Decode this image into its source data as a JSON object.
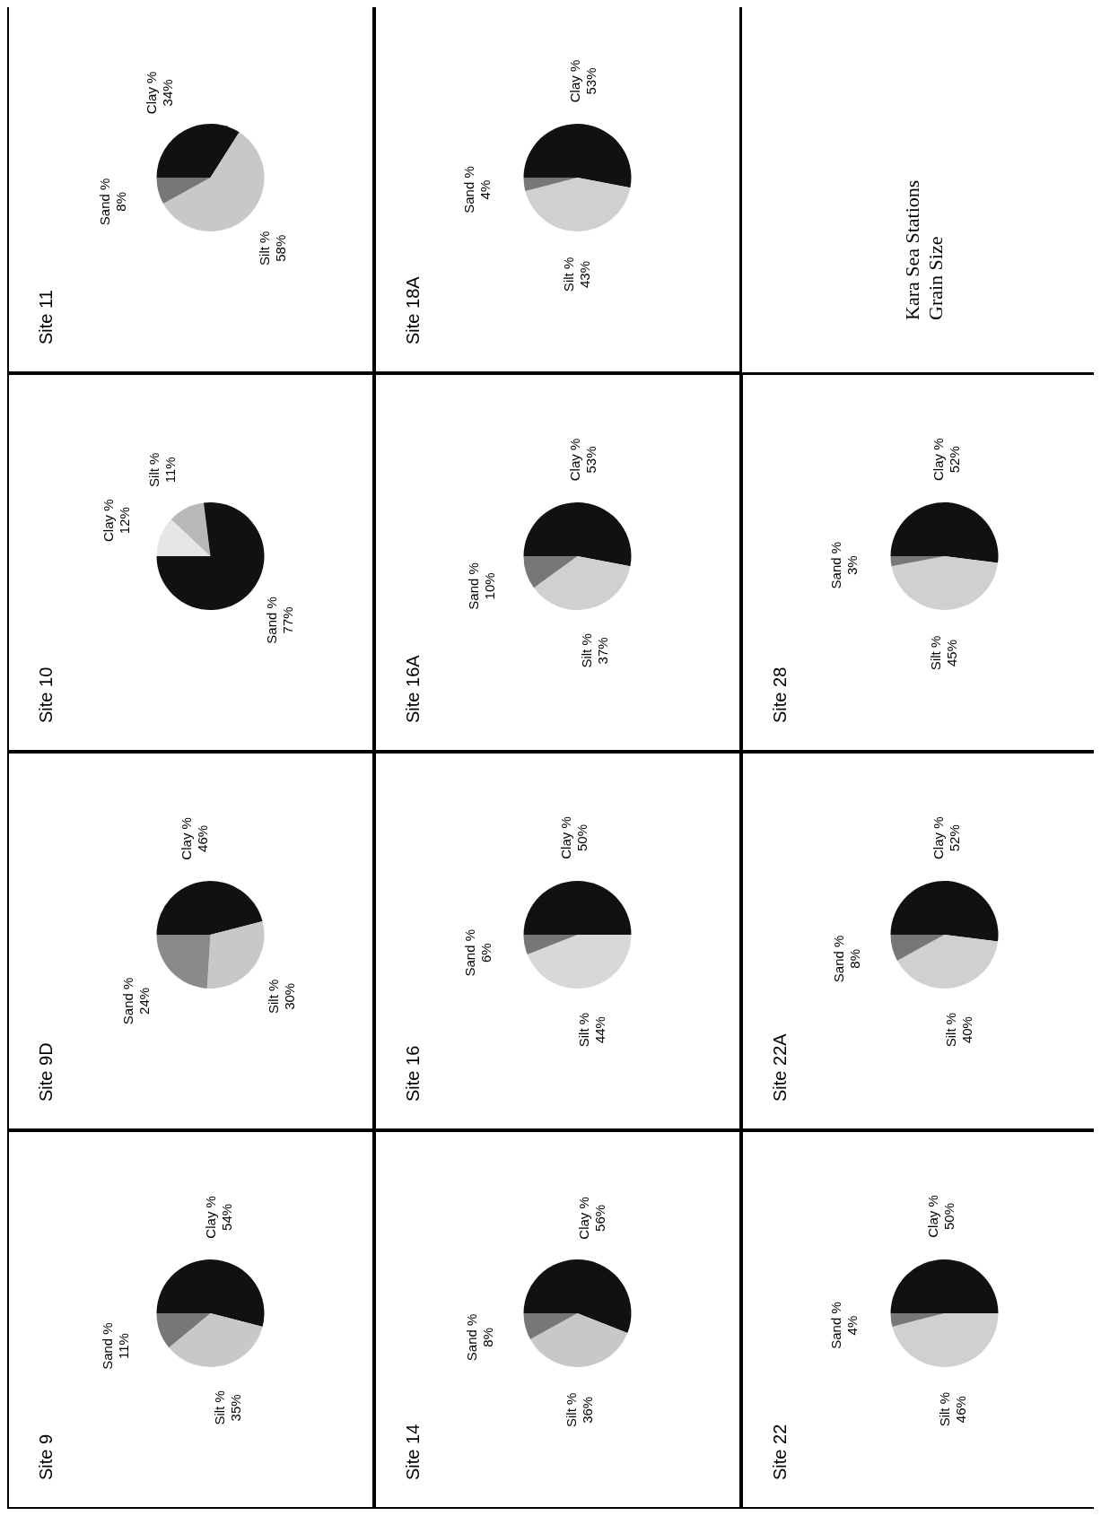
{
  "chart_data": [
    {
      "type": "pie",
      "title": "Site 9",
      "categories": [
        "Clay %",
        "Silt %",
        "Sand %"
      ],
      "values": [
        54,
        35,
        11
      ],
      "colors": [
        "#111111",
        "#c8c8c8",
        "#777777"
      ],
      "value_labels": [
        "54%",
        "35%",
        "11%"
      ]
    },
    {
      "type": "pie",
      "title": "Site 9D",
      "categories": [
        "Clay %",
        "Silt %",
        "Sand %"
      ],
      "values": [
        46,
        30,
        24
      ],
      "colors": [
        "#111111",
        "#c8c8c8",
        "#8a8a8a"
      ],
      "value_labels": [
        "46%",
        "30%",
        "24%"
      ]
    },
    {
      "type": "pie",
      "title": "Site 10",
      "categories": [
        "Clay %",
        "Silt %",
        "Sand %"
      ],
      "values": [
        12,
        11,
        77
      ],
      "colors": [
        "#e6e6e6",
        "#b8b8b8",
        "#111111"
      ],
      "value_labels": [
        "12%",
        "11%",
        "77%"
      ]
    },
    {
      "type": "pie",
      "title": "Site 11",
      "categories": [
        "Clay %",
        "Silt %",
        "Sand %"
      ],
      "values": [
        34,
        58,
        8
      ],
      "colors": [
        "#111111",
        "#c8c8c8",
        "#777777"
      ],
      "value_labels": [
        "34%",
        "58%",
        "8%"
      ]
    },
    {
      "type": "pie",
      "title": "Site 14",
      "categories": [
        "Clay %",
        "Silt %",
        "Sand %"
      ],
      "values": [
        56,
        36,
        8
      ],
      "colors": [
        "#111111",
        "#c8c8c8",
        "#777777"
      ],
      "value_labels": [
        "56%",
        "36%",
        "8%"
      ]
    },
    {
      "type": "pie",
      "title": "Site 16",
      "categories": [
        "Clay %",
        "Silt %",
        "Sand %"
      ],
      "values": [
        50,
        44,
        6
      ],
      "colors": [
        "#111111",
        "#d8d8d8",
        "#777777"
      ],
      "value_labels": [
        "50%",
        "44%",
        "6%"
      ]
    },
    {
      "type": "pie",
      "title": "Site 16A",
      "categories": [
        "Clay %",
        "Silt %",
        "Sand %"
      ],
      "values": [
        53,
        37,
        10
      ],
      "colors": [
        "#111111",
        "#d0d0d0",
        "#777777"
      ],
      "value_labels": [
        "53%",
        "37%",
        "10%"
      ]
    },
    {
      "type": "pie",
      "title": "Site 18A",
      "categories": [
        "Clay %",
        "Silt %",
        "Sand %"
      ],
      "values": [
        53,
        43,
        4
      ],
      "colors": [
        "#111111",
        "#d0d0d0",
        "#777777"
      ],
      "value_labels": [
        "53%",
        "43%",
        "4%"
      ]
    },
    {
      "type": "pie",
      "title": "Site 22",
      "categories": [
        "Clay %",
        "Silt %",
        "Sand %"
      ],
      "values": [
        50,
        46,
        4
      ],
      "colors": [
        "#111111",
        "#d0d0d0",
        "#777777"
      ],
      "value_labels": [
        "50%",
        "46%",
        "4%"
      ]
    },
    {
      "type": "pie",
      "title": "Site 22A",
      "categories": [
        "Clay %",
        "Silt %",
        "Sand %"
      ],
      "values": [
        52,
        40,
        8
      ],
      "colors": [
        "#111111",
        "#d0d0d0",
        "#777777"
      ],
      "value_labels": [
        "52%",
        "40%",
        "8%"
      ]
    },
    {
      "type": "pie",
      "title": "Site 28",
      "categories": [
        "Clay %",
        "Silt %",
        "Sand %"
      ],
      "values": [
        52,
        45,
        3
      ],
      "colors": [
        "#111111",
        "#d0d0d0",
        "#777777"
      ],
      "value_labels": [
        "52%",
        "45%",
        "3%"
      ]
    },
    {
      "type": "other",
      "title": "Kara Sea Stations",
      "subtitle": "Grain Size"
    }
  ]
}
